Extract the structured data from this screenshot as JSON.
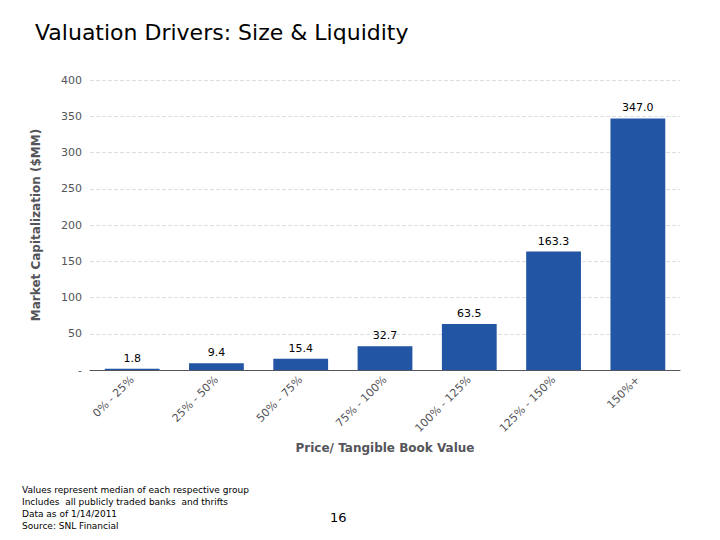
{
  "chart_data": {
    "type": "bar",
    "title": "Valuation Drivers: Size & Liquidity",
    "categories": [
      "0% - 25%",
      "25% - 50%",
      "50% - 75%",
      "75% - 100%",
      "100% - 125%",
      "125% - 150%",
      "150%+"
    ],
    "values": [
      1.8,
      9.4,
      15.4,
      32.7,
      63.5,
      163.3,
      347.0
    ],
    "value_labels": [
      "1.8",
      "9.4",
      "15.4",
      "32.7",
      "63.5",
      "163.3",
      "347.0"
    ],
    "data_labels": true,
    "color": "#2255A4",
    "x_label": "Price/ Tangible Book Value",
    "y_label": "Market Capitalization ($MM)",
    "ylim": [
      0,
      400
    ],
    "yticks": [
      {
        "value": 0,
        "label": "-"
      },
      50,
      100,
      150,
      200,
      250,
      300,
      350,
      400
    ],
    "grid": true,
    "annotations": [
      "Values represent median of each respective group",
      "Includes  all publicly traded banks  and thrifts",
      "Data as of 1/14/2011",
      "Source: SNL Financial"
    ],
    "page_number": "16"
  }
}
